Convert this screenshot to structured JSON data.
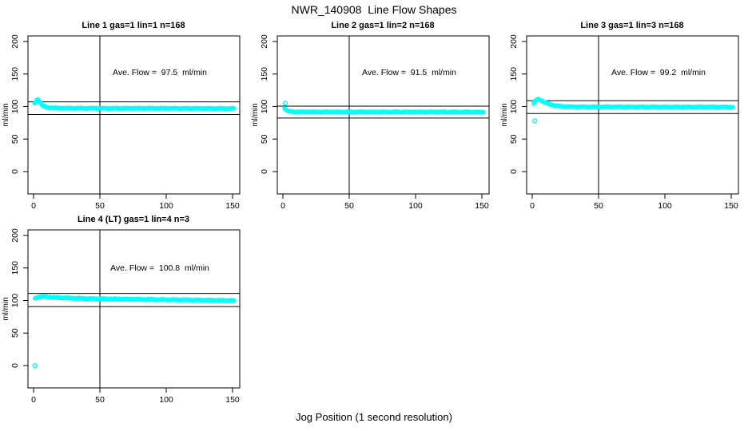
{
  "title": "NWR_140908  Line Flow Shapes",
  "xlabel": "Jog Position (1 second resolution)",
  "colors": {
    "points": "#00FFFF",
    "axis": "#000000",
    "background": "#FFFFFF"
  },
  "chart_data": [
    {
      "type": "scatter",
      "title": "Line 1 gas=1 lin=1 n=168",
      "ave_flow": 97.5,
      "ave_flow_label": "Ave. Flow =  97.5  ml/min",
      "ylabel": "ml/min",
      "x_ticks": [
        0,
        50,
        100,
        150
      ],
      "y_ticks": [
        0,
        50,
        100,
        150,
        200
      ],
      "xlim": [
        0,
        155
      ],
      "ylim": [
        -34,
        207
      ],
      "vline_x": 50,
      "hlines": [
        107.25,
        87.75
      ],
      "profile": [
        [
          0.8,
          104.5
        ],
        [
          1.6,
          107.5
        ],
        [
          2.4,
          110.0
        ],
        [
          3.2,
          110.8
        ],
        [
          4.0,
          109.5
        ],
        [
          5.0,
          106.5
        ],
        [
          6.0,
          103.5
        ],
        [
          7.0,
          101.5
        ],
        [
          8.5,
          99.8
        ],
        [
          10.0,
          98.7
        ],
        [
          13.0,
          98.0
        ],
        [
          18.0,
          97.6
        ],
        [
          30.0,
          97.4
        ],
        [
          60.0,
          97.3
        ],
        [
          100.0,
          97.3
        ],
        [
          151.0,
          97.0
        ]
      ],
      "outliers": [],
      "jitter_amp": 0.9
    },
    {
      "type": "scatter",
      "title": "Line 2 gas=1 lin=2 n=168",
      "ave_flow": 91.5,
      "ave_flow_label": "Ave. Flow =  91.5  ml/min",
      "ylabel": "ml/min",
      "x_ticks": [
        0,
        50,
        100,
        150
      ],
      "y_ticks": [
        0,
        50,
        100,
        150,
        200
      ],
      "xlim": [
        0,
        155
      ],
      "ylim": [
        -34,
        207
      ],
      "vline_x": 50,
      "hlines": [
        100.65,
        82.35
      ],
      "profile": [
        [
          1.2,
          97.5
        ],
        [
          2.0,
          95.5
        ],
        [
          3.0,
          93.8
        ],
        [
          4.5,
          92.8
        ],
        [
          6.0,
          92.3
        ],
        [
          9.0,
          92.0
        ],
        [
          15.0,
          91.9
        ],
        [
          50.0,
          91.8
        ],
        [
          100.0,
          91.8
        ],
        [
          151.0,
          91.6
        ]
      ],
      "outliers": [
        [
          1.8,
          105
        ]
      ],
      "jitter_amp": 0.7
    },
    {
      "type": "scatter",
      "title": "Line 3 gas=1 lin=3 n=168",
      "ave_flow": 99.2,
      "ave_flow_label": "Ave. Flow =  99.2  ml/min",
      "ylabel": "ml/min",
      "x_ticks": [
        0,
        50,
        100,
        150
      ],
      "y_ticks": [
        0,
        50,
        100,
        150,
        200
      ],
      "xlim": [
        0,
        155
      ],
      "ylim": [
        -34,
        207
      ],
      "vline_x": 50,
      "hlines": [
        109.12,
        89.28
      ],
      "profile": [
        [
          1.0,
          104.5
        ],
        [
          2.0,
          107.5
        ],
        [
          3.0,
          110.0
        ],
        [
          4.0,
          111.3
        ],
        [
          5.0,
          111.0
        ],
        [
          6.5,
          109.8
        ],
        [
          8.0,
          108.0
        ],
        [
          10.0,
          106.0
        ],
        [
          12.5,
          104.0
        ],
        [
          15.0,
          102.5
        ],
        [
          18.0,
          101.3
        ],
        [
          22.0,
          100.3
        ],
        [
          27.0,
          99.8
        ],
        [
          40.0,
          99.6
        ],
        [
          80.0,
          99.5
        ],
        [
          151.0,
          99.3
        ]
      ],
      "outliers": [
        [
          2.0,
          78
        ]
      ],
      "jitter_amp": 0.8
    },
    {
      "type": "scatter",
      "title": "Line 4 (LT) gas=1 lin=4 n=3",
      "ave_flow": 100.8,
      "ave_flow_label": "Ave. Flow =  100.8  ml/min",
      "ylabel": "ml/min",
      "x_ticks": [
        0,
        50,
        100,
        150
      ],
      "y_ticks": [
        0,
        50,
        100,
        150,
        200
      ],
      "xlim": [
        0,
        155
      ],
      "ylim": [
        -34,
        207
      ],
      "vline_x": 50,
      "hlines": [
        110.88,
        90.72
      ],
      "profile": [
        [
          1.0,
          103.0
        ],
        [
          2.0,
          104.0
        ],
        [
          3.5,
          105.3
        ],
        [
          5.5,
          106.2
        ],
        [
          8.0,
          106.0
        ],
        [
          12.0,
          105.3
        ],
        [
          18.0,
          104.5
        ],
        [
          26.0,
          103.8
        ],
        [
          36.0,
          103.2
        ],
        [
          50.0,
          102.6
        ],
        [
          70.0,
          102.0
        ],
        [
          95.0,
          101.4
        ],
        [
          120.0,
          100.8
        ],
        [
          140.0,
          100.3
        ],
        [
          151.0,
          100.0
        ]
      ],
      "outliers": [
        [
          1.0,
          0
        ]
      ],
      "jitter_amp": 1.1
    }
  ]
}
